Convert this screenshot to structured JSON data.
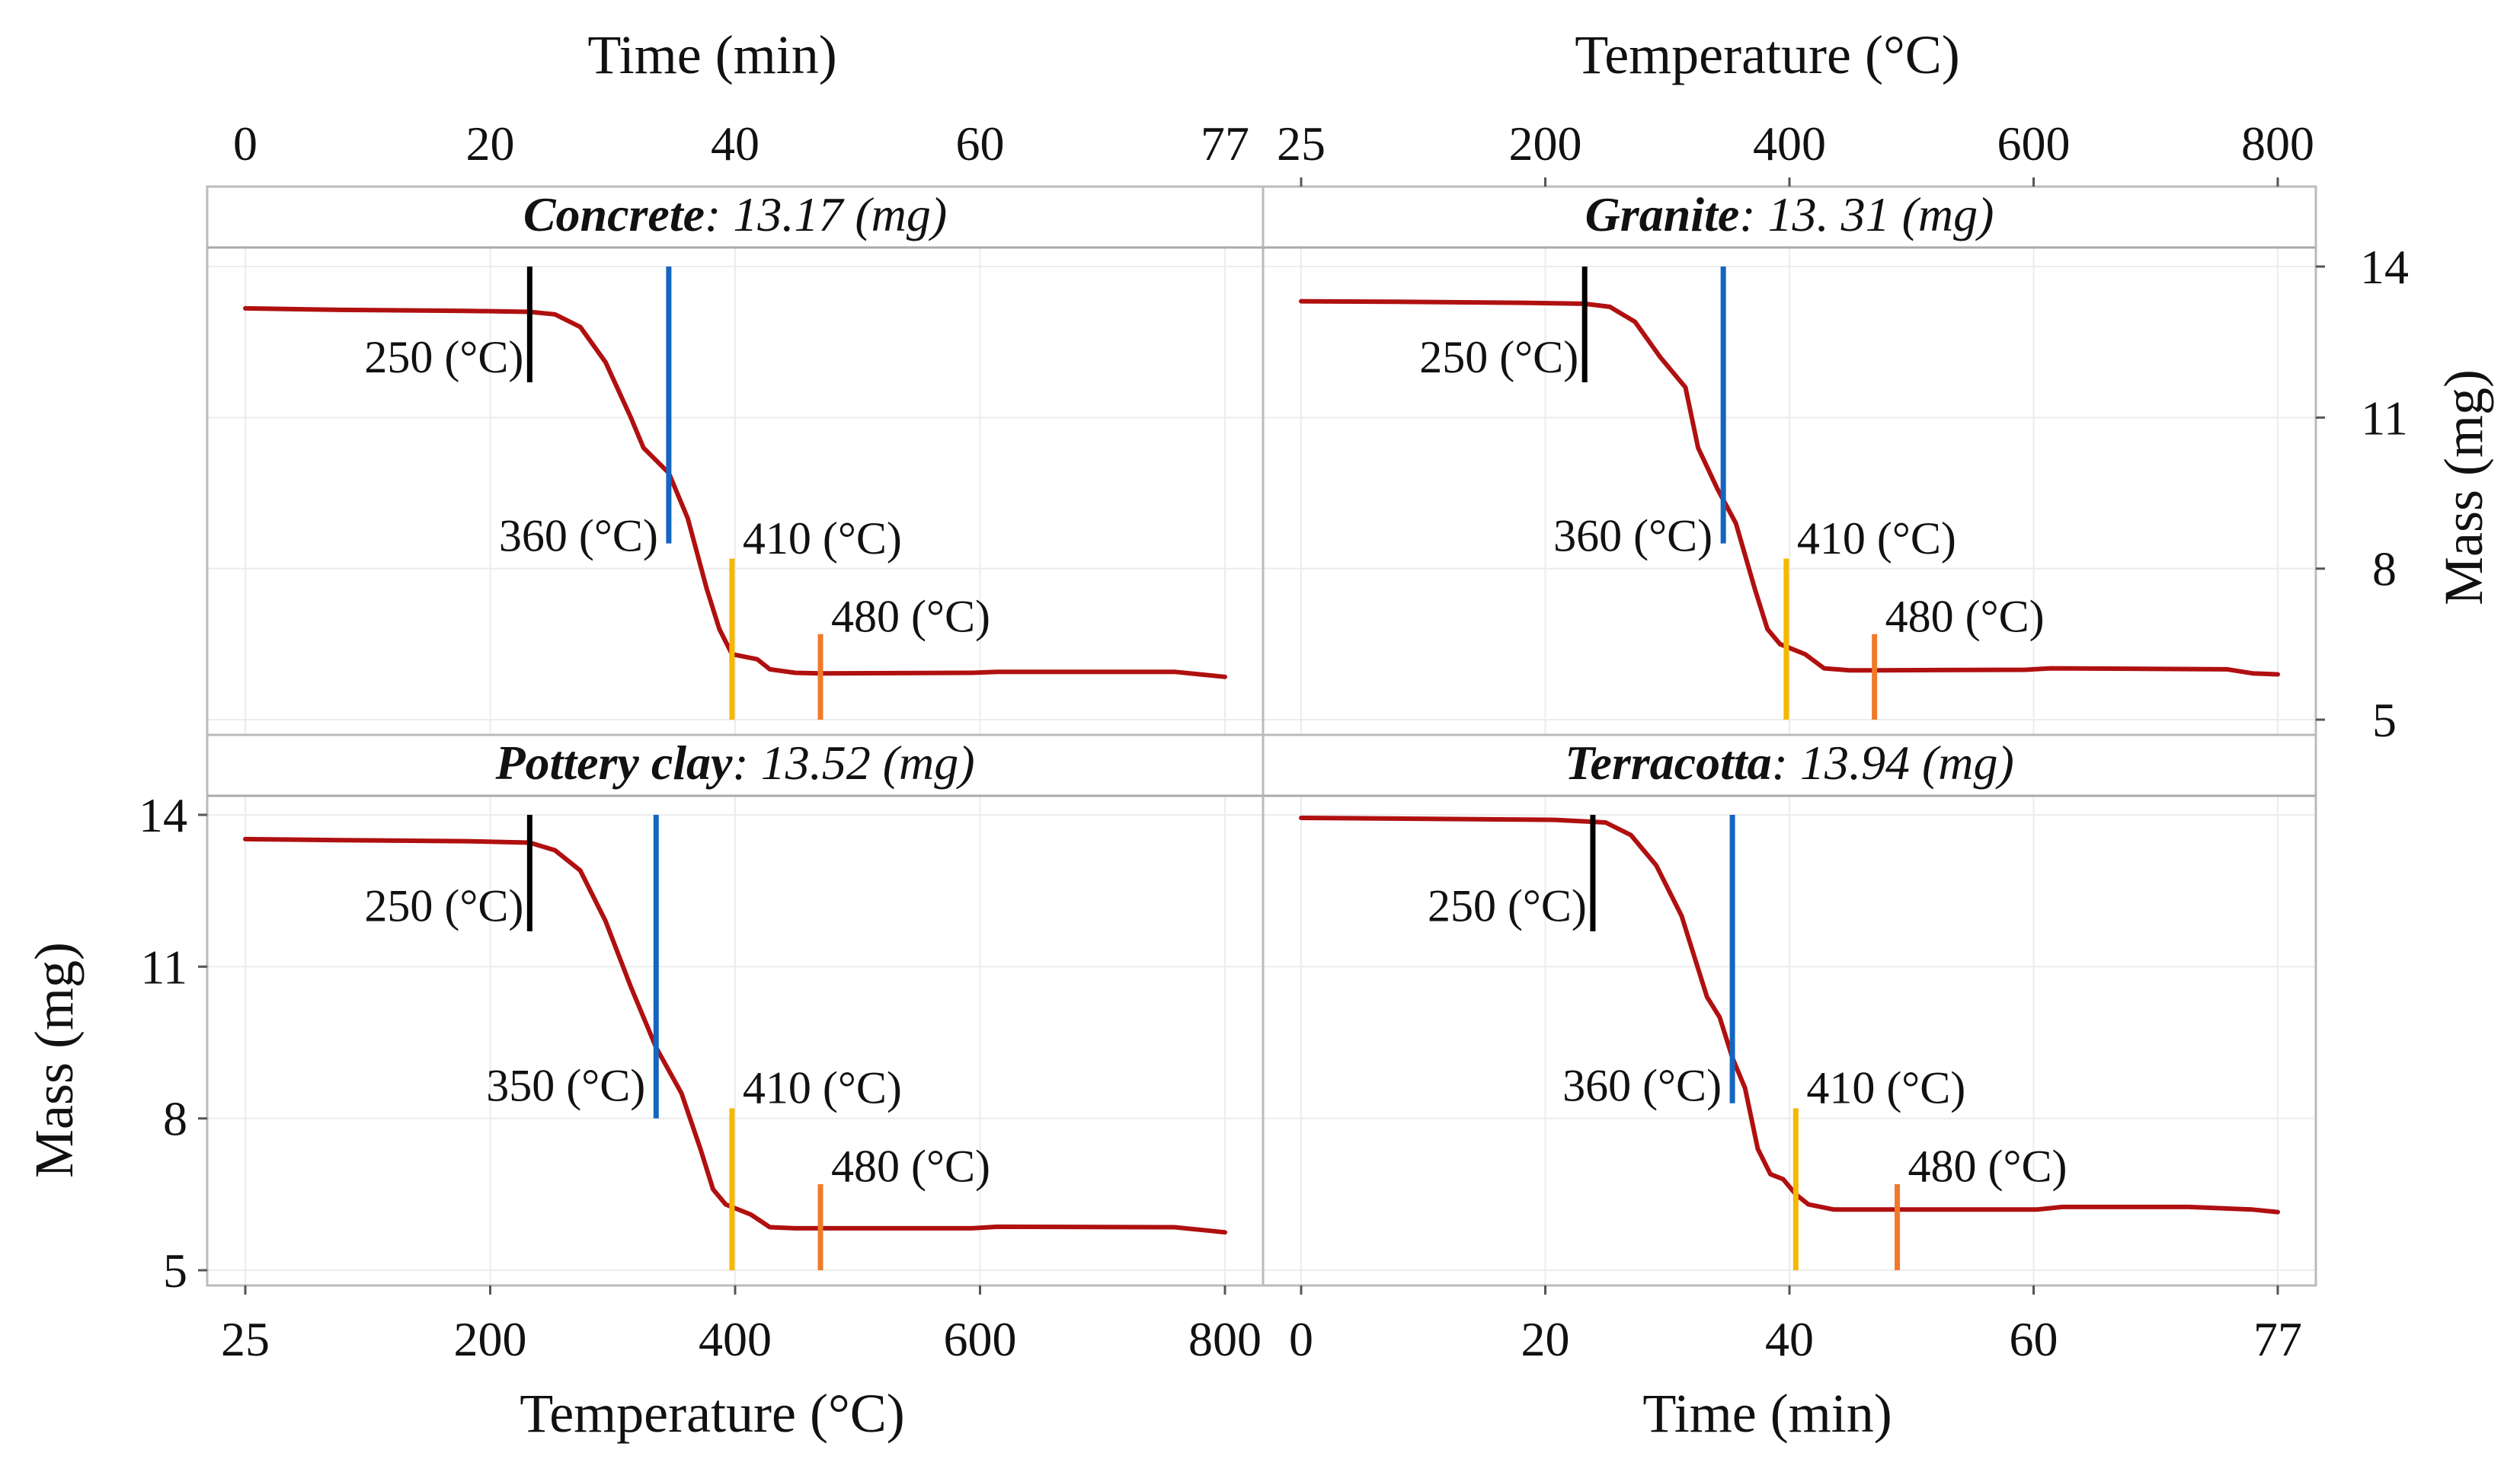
{
  "axis_titles": {
    "top_left": "Time (min)",
    "top_right": "Temperature (°C)",
    "bottom_left": "Temperature (°C)",
    "bottom_right": "Time (min)",
    "left": "Mass (mg)",
    "right": "Mass (mg)"
  },
  "colors": {
    "curve": "#b01010",
    "m250": "#000000",
    "mMid": "#1565c0",
    "m410": "#f5b800",
    "m480": "#f07a2a"
  },
  "chart_data": [
    {
      "type": "line",
      "panel": "top-left",
      "name": "Concrete",
      "title_suffix": ": 13.17 (mg)",
      "x_axis": "Temperature (°C)",
      "xlim": [
        25,
        800
      ],
      "ylim": [
        5,
        14
      ],
      "xticks": [
        "25",
        "200",
        "400",
        "600",
        "800"
      ],
      "alt_axis": "Time (min)",
      "alt_ticks": [
        "0",
        "20",
        "40",
        "60",
        "77"
      ],
      "series": [
        {
          "name": "Mass (mg)",
          "x": [
            25,
            100,
            200,
            250,
            270,
            290,
            310,
            330,
            340,
            360,
            375,
            390,
            400,
            410,
            430,
            440,
            460,
            480,
            600,
            620,
            760,
            780,
            800
          ],
          "y": [
            13.17,
            13.14,
            13.12,
            13.1,
            13.05,
            12.8,
            12.1,
            11.0,
            10.4,
            9.9,
            9.0,
            7.6,
            6.8,
            6.3,
            6.2,
            6.0,
            5.93,
            5.92,
            5.93,
            5.95,
            5.95,
            5.9,
            5.85
          ]
        }
      ],
      "markers": [
        {
          "label": "250 (°C)",
          "value": 250,
          "color_key": "m250"
        },
        {
          "label": "360 (°C)",
          "value": 360,
          "color_key": "mMid"
        },
        {
          "label": "410 (°C)",
          "value": 410,
          "color_key": "m410"
        },
        {
          "label": "480 (°C)",
          "value": 480,
          "color_key": "m480"
        }
      ]
    },
    {
      "type": "line",
      "panel": "top-right",
      "name": "Granite",
      "title_suffix": ": 13. 31 (mg)",
      "x_axis": "Temperature (°C)",
      "xlim": [
        25,
        800
      ],
      "ylim": [
        5,
        14
      ],
      "xticks": [
        "25",
        "200",
        "400",
        "600",
        "800"
      ],
      "yticks": [
        "5",
        "8",
        "11",
        "14"
      ],
      "series": [
        {
          "name": "Mass (mg)",
          "x": [
            25,
            100,
            200,
            250,
            270,
            290,
            310,
            330,
            340,
            355,
            370,
            385,
            395,
            405,
            425,
            440,
            460,
            480,
            600,
            620,
            760,
            780,
            800
          ],
          "y": [
            13.31,
            13.3,
            13.28,
            13.26,
            13.2,
            12.9,
            12.2,
            11.6,
            10.4,
            9.6,
            8.9,
            7.6,
            6.8,
            6.5,
            6.3,
            6.02,
            5.98,
            5.98,
            5.99,
            6.02,
            6.0,
            5.92,
            5.9
          ]
        }
      ],
      "markers": [
        {
          "label": "250 (°C)",
          "value": 250,
          "color_key": "m250"
        },
        {
          "label": "360 (°C)",
          "value": 360,
          "color_key": "mMid"
        },
        {
          "label": "410 (°C)",
          "value": 410,
          "color_key": "m410"
        },
        {
          "label": "480 (°C)",
          "value": 480,
          "color_key": "m480"
        }
      ]
    },
    {
      "type": "line",
      "panel": "bottom-left",
      "name": "Pottery clay",
      "title_suffix": ": 13.52 (mg)",
      "x_axis": "Temperature (°C)",
      "xlim": [
        25,
        800
      ],
      "ylim": [
        5,
        14
      ],
      "xticks": [
        "25",
        "200",
        "400",
        "600",
        "800"
      ],
      "yticks": [
        "5",
        "8",
        "11",
        "14"
      ],
      "series": [
        {
          "name": "Mass (mg)",
          "x": [
            25,
            100,
            200,
            250,
            270,
            290,
            310,
            330,
            350,
            370,
            385,
            395,
            405,
            425,
            440,
            460,
            480,
            600,
            620,
            760,
            780,
            800
          ],
          "y": [
            13.52,
            13.5,
            13.48,
            13.45,
            13.3,
            12.9,
            11.9,
            10.6,
            9.4,
            8.5,
            7.4,
            6.6,
            6.3,
            6.1,
            5.85,
            5.83,
            5.83,
            5.83,
            5.86,
            5.85,
            5.8,
            5.75
          ]
        }
      ],
      "markers": [
        {
          "label": "250 (°C)",
          "value": 250,
          "color_key": "m250"
        },
        {
          "label": "350 (°C)",
          "value": 350,
          "color_key": "mMid"
        },
        {
          "label": "410 (°C)",
          "value": 410,
          "color_key": "m410"
        },
        {
          "label": "480 (°C)",
          "value": 480,
          "color_key": "m480"
        }
      ]
    },
    {
      "type": "line",
      "panel": "bottom-right",
      "name": "Terracotta",
      "title_suffix": ": 13.94 (mg)",
      "x_axis": "Time (min)",
      "xlim": [
        0,
        77
      ],
      "ylim": [
        5,
        14
      ],
      "xticks": [
        "0",
        "20",
        "40",
        "60",
        "77"
      ],
      "series": [
        {
          "name": "Mass (mg)",
          "x": [
            0,
            10,
            20,
            24,
            26,
            28,
            30,
            31,
            32,
            33,
            34,
            35,
            36,
            37,
            38,
            39,
            40,
            42,
            50,
            58,
            60,
            70,
            75,
            77
          ],
          "y": [
            13.94,
            13.92,
            13.9,
            13.85,
            13.6,
            13.0,
            12.0,
            11.2,
            10.4,
            10.0,
            9.2,
            8.6,
            7.4,
            6.9,
            6.8,
            6.5,
            6.3,
            6.2,
            6.2,
            6.2,
            6.25,
            6.25,
            6.2,
            6.15
          ]
        }
      ],
      "markers": [
        {
          "label": "250 (°C)",
          "value": 23,
          "color_key": "m250"
        },
        {
          "label": "360 (°C)",
          "value": 34,
          "color_key": "mMid"
        },
        {
          "label": "410 (°C)",
          "value": 39,
          "color_key": "m410"
        },
        {
          "label": "480 (°C)",
          "value": 47,
          "color_key": "m480"
        }
      ]
    }
  ]
}
